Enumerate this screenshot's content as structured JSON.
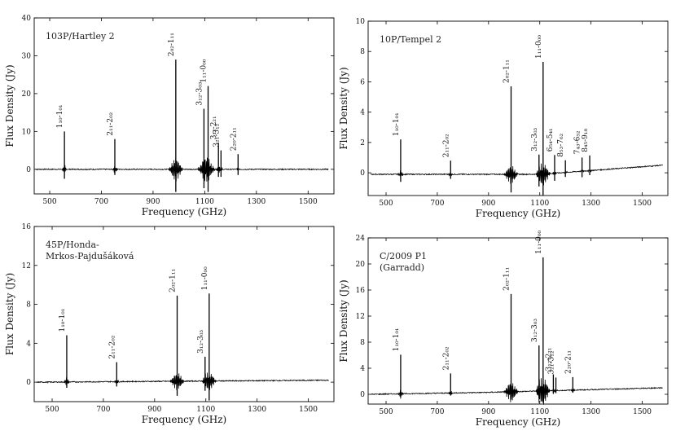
{
  "chart_data": [
    {
      "type": "line",
      "title": [
        "103P/Hartley 2"
      ],
      "xlabel": "Frequency (GHz)",
      "ylabel": "Flux Density (Jy)",
      "xlim": [
        440,
        1600
      ],
      "ylim": [
        -6.5,
        40
      ],
      "xticks": [
        {
          "v": 500,
          "t": "500"
        },
        {
          "v": 700,
          "t": "700"
        },
        {
          "v": 900,
          "t": "900"
        },
        {
          "v": 1100,
          "t": "1100"
        },
        {
          "v": 1300,
          "t": "1300"
        },
        {
          "v": 1500,
          "t": "1500"
        }
      ],
      "yticks": [
        {
          "v": 0,
          "t": "0"
        },
        {
          "v": 10,
          "t": "10"
        },
        {
          "v": 20,
          "t": "20"
        },
        {
          "v": 30,
          "t": "30"
        },
        {
          "v": 40,
          "t": "40"
        }
      ],
      "baseline": [
        [
          445,
          0
        ],
        [
          1580,
          0
        ]
      ],
      "lines": [
        {
          "x": 557,
          "peak": 10,
          "trough": -2.5,
          "label": "1₁₀-1₀₁"
        },
        {
          "x": 752,
          "peak": 8,
          "trough": -1.5,
          "label": "2₁₁-2₀₂"
        },
        {
          "x": 988,
          "peak": 29,
          "trough": -6,
          "label": "2₀₂-1₁₁"
        },
        {
          "x": 1097,
          "peak": 16,
          "trough": -5,
          "label": "3₁₂-3₀₃"
        },
        {
          "x": 1113,
          "peak": 22,
          "trough": -6,
          "label": "1₁₁-0₀₀"
        },
        {
          "x": 1153,
          "peak": 7,
          "trough": -2,
          "label": "3₁₂-2₂₁"
        },
        {
          "x": 1163,
          "peak": 5,
          "trough": -2,
          "label": "3₂₁-3₁₂"
        },
        {
          "x": 1229,
          "peak": 4,
          "trough": -1.5,
          "label": "2₂₀-2₁₁"
        }
      ]
    },
    {
      "type": "line",
      "title": [
        "10P/Tempel 2"
      ],
      "xlabel": "Frequency (GHz)",
      "ylabel": "Flux Density (Jy)",
      "xlim": [
        430,
        1600
      ],
      "ylim": [
        -1.5,
        10
      ],
      "xticks": [
        {
          "v": 500,
          "t": "500"
        },
        {
          "v": 700,
          "t": "700"
        },
        {
          "v": 900,
          "t": "900"
        },
        {
          "v": 1100,
          "t": "1100"
        },
        {
          "v": 1300,
          "t": "1300"
        },
        {
          "v": 1500,
          "t": "1500"
        }
      ],
      "yticks": [
        {
          "v": 0,
          "t": "0"
        },
        {
          "v": 2,
          "t": "2"
        },
        {
          "v": 4,
          "t": "4"
        },
        {
          "v": 6,
          "t": "6"
        },
        {
          "v": 8,
          "t": "8"
        },
        {
          "v": 10,
          "t": "10"
        }
      ],
      "baseline": [
        [
          440,
          -0.1
        ],
        [
          1100,
          -0.1
        ],
        [
          1580,
          0.5
        ]
      ],
      "lines": [
        {
          "x": 557,
          "peak": 2.3,
          "trough": -0.5,
          "label": "1₁₀-1₀₁"
        },
        {
          "x": 752,
          "peak": 0.9,
          "trough": -0.3,
          "label": "2₁₁-2₀₂"
        },
        {
          "x": 988,
          "peak": 5.8,
          "trough": -1.2,
          "label": "2₀₂-1₁₁"
        },
        {
          "x": 1097,
          "peak": 1.3,
          "trough": -0.8,
          "label": "3₁₂-3₀₃"
        },
        {
          "x": 1113,
          "peak": 7.4,
          "trough": -1.4,
          "label": "1₁₁-0₀₀"
        },
        {
          "x": 1158,
          "peak": 1.2,
          "trough": -0.5,
          "label": "6₅₄-5₄₁"
        },
        {
          "x": 1200,
          "peak": 0.8,
          "trough": -0.3,
          "label": "8₅₃-7₆₂"
        },
        {
          "x": 1265,
          "peak": 0.9,
          "trough": -0.4,
          "label": "7₄₃-6₅₂"
        },
        {
          "x": 1295,
          "peak": 1.0,
          "trough": -0.3,
          "label": "8₄₅-9₁₈"
        }
      ]
    },
    {
      "type": "line",
      "title": [
        "45P/Honda-",
        "Mrkos-Pajdušáková"
      ],
      "xlabel": "Frequency (GHz)",
      "ylabel": "Flux Density (Jy)",
      "xlim": [
        430,
        1600
      ],
      "ylim": [
        -2,
        16
      ],
      "xticks": [
        {
          "v": 500,
          "t": "500"
        },
        {
          "v": 700,
          "t": "700"
        },
        {
          "v": 900,
          "t": "900"
        },
        {
          "v": 1100,
          "t": "1100"
        },
        {
          "v": 1300,
          "t": "1300"
        },
        {
          "v": 1500,
          "t": "1500"
        }
      ],
      "yticks": [
        {
          "v": 0,
          "t": "0"
        },
        {
          "v": 4,
          "t": "4"
        },
        {
          "v": 8,
          "t": "8"
        },
        {
          "v": 12,
          "t": "12"
        },
        {
          "v": 16,
          "t": "16"
        }
      ],
      "baseline": [
        [
          440,
          0
        ],
        [
          1580,
          0.2
        ]
      ],
      "lines": [
        {
          "x": 557,
          "peak": 4.8,
          "trough": -0.6,
          "label": "1₁₀-1₀₁"
        },
        {
          "x": 752,
          "peak": 2.0,
          "trough": -0.5,
          "label": "2₁₁-2₀₂"
        },
        {
          "x": 988,
          "peak": 8.8,
          "trough": -1.5,
          "label": "2₀₂-1₁₁"
        },
        {
          "x": 1097,
          "peak": 2.5,
          "trough": -1.0,
          "label": "3₁₂-3₀₃"
        },
        {
          "x": 1113,
          "peak": 9.0,
          "trough": -2.0,
          "label": "1₁₁-0₀₀"
        }
      ]
    },
    {
      "type": "line",
      "title": [
        "C/2009 P1",
        "(Garradd)"
      ],
      "xlabel": "Frequency (GHz)",
      "ylabel": "Flux Density (Jy)",
      "xlim": [
        430,
        1600
      ],
      "ylim": [
        -1.5,
        24
      ],
      "xticks": [
        {
          "v": 500,
          "t": "500"
        },
        {
          "v": 700,
          "t": "700"
        },
        {
          "v": 900,
          "t": "900"
        },
        {
          "v": 1100,
          "t": "1100"
        },
        {
          "v": 1300,
          "t": "1300"
        },
        {
          "v": 1500,
          "t": "1500"
        }
      ],
      "yticks": [
        {
          "v": 0,
          "t": "0"
        },
        {
          "v": 4,
          "t": "4"
        },
        {
          "v": 8,
          "t": "8"
        },
        {
          "v": 12,
          "t": "12"
        },
        {
          "v": 16,
          "t": "16"
        },
        {
          "v": 20,
          "t": "20"
        },
        {
          "v": 24,
          "t": "24"
        }
      ],
      "baseline": [
        [
          440,
          0
        ],
        [
          900,
          0.3
        ],
        [
          1580,
          1.0
        ]
      ],
      "lines": [
        {
          "x": 557,
          "peak": 6.0,
          "trough": -0.5,
          "label": "1₁₀-1₀₁"
        },
        {
          "x": 752,
          "peak": 3.0,
          "trough": -0.4,
          "label": "2₁₁-2₀₂"
        },
        {
          "x": 988,
          "peak": 15.0,
          "trough": -1.2,
          "label": "2₀₂-1₁₁"
        },
        {
          "x": 1097,
          "peak": 7.0,
          "trough": -1.0,
          "label": "3₁₂-3₀₃"
        },
        {
          "x": 1113,
          "peak": 20.5,
          "trough": -1.5,
          "label": "1₁₁-0₀₀"
        },
        {
          "x": 1153,
          "peak": 2.5,
          "trough": -0.5,
          "label": "3₁₂-2₂₁"
        },
        {
          "x": 1163,
          "peak": 2.0,
          "trough": -0.4,
          "label": "3₂₁-3₁₂"
        },
        {
          "x": 1229,
          "peak": 2.0,
          "trough": -0.4,
          "label": "2₂₀-2₁₁"
        }
      ]
    }
  ]
}
